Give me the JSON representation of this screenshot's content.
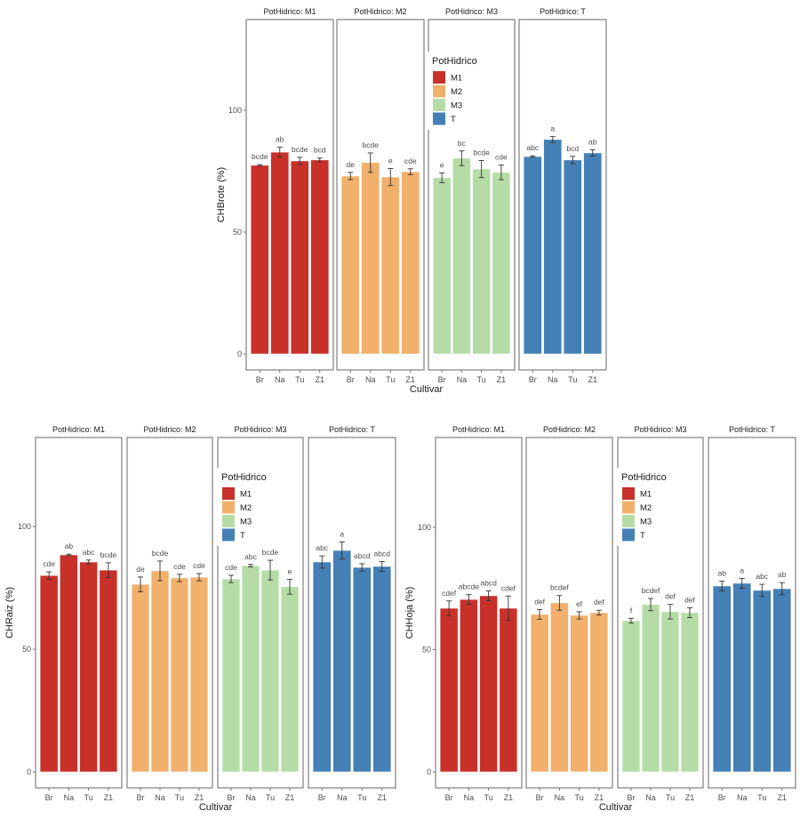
{
  "chart_data": [
    {
      "type": "bar",
      "id": "brote",
      "ylabel": "CHBrote (%)",
      "xlabel": "Cultivar",
      "ylim": [
        0,
        100
      ],
      "yticks": [
        0,
        50,
        100
      ],
      "categories": [
        "Br",
        "Na",
        "Tu",
        "Z1"
      ],
      "facet_prefix": "PotHidrico: ",
      "grid": false,
      "legend_position": "inside-third-panel",
      "series": [
        {
          "name": "M1",
          "values": [
            77.4,
            82.8,
            79.2,
            79.6
          ],
          "errors": [
            0.3,
            2,
            1.5,
            0.8
          ],
          "letters": [
            "bcde",
            "ab",
            "bcde",
            "bcd"
          ]
        },
        {
          "name": "M2",
          "values": [
            73.0,
            78.5,
            72.6,
            74.8
          ],
          "errors": [
            1.5,
            4,
            3.5,
            1.2
          ],
          "letters": [
            "de",
            "bcde",
            "e",
            "cde"
          ]
        },
        {
          "name": "M3",
          "values": [
            72.3,
            80.3,
            75.9,
            74.5
          ],
          "errors": [
            2,
            3,
            3.5,
            3
          ],
          "letters": [
            "e",
            "bc",
            "bcde",
            "cde"
          ]
        },
        {
          "name": "T",
          "values": [
            81.0,
            88.0,
            79.6,
            82.5
          ],
          "errors": [
            0.3,
            1.2,
            1.5,
            1.3
          ],
          "letters": [
            "abc",
            "a",
            "bcd",
            "ab"
          ]
        }
      ]
    },
    {
      "type": "bar",
      "id": "raiz",
      "ylabel": "CHRaiz (%)",
      "xlabel": "Cultivar",
      "ylim": [
        0,
        100
      ],
      "yticks": [
        0,
        50,
        100
      ],
      "categories": [
        "Br",
        "Na",
        "Tu",
        "Z1"
      ],
      "facet_prefix": "PotHidrico: ",
      "grid": false,
      "legend_position": "inside-third-panel",
      "series": [
        {
          "name": "M1",
          "values": [
            80.0,
            88.4,
            85.5,
            82.2
          ],
          "errors": [
            1.5,
            0.3,
            0.8,
            3
          ],
          "letters": [
            "cde",
            "ab",
            "abc",
            "bcde"
          ]
        },
        {
          "name": "M2",
          "values": [
            76.4,
            81.9,
            79.0,
            79.3
          ],
          "errors": [
            3,
            4,
            1.5,
            1.5
          ],
          "letters": [
            "de",
            "bcde",
            "cde",
            "cde"
          ]
        },
        {
          "name": "M3",
          "values": [
            78.6,
            84.0,
            82.2,
            75.4
          ],
          "errors": [
            1.5,
            0.5,
            4,
            3
          ],
          "letters": [
            "cde",
            "abc",
            "bcde",
            "e"
          ]
        },
        {
          "name": "T",
          "values": [
            85.5,
            90.2,
            83.3,
            83.7
          ],
          "errors": [
            2.5,
            3.5,
            1.5,
            2
          ],
          "letters": [
            "abc",
            "a",
            "abcd",
            "abcd"
          ]
        }
      ]
    },
    {
      "type": "bar",
      "id": "hoja",
      "ylabel": "CHHoja (%)",
      "xlabel": "Cultivar",
      "ylim": [
        0,
        100
      ],
      "yticks": [
        0,
        50,
        100
      ],
      "categories": [
        "Br",
        "Na",
        "Tu",
        "Z1"
      ],
      "facet_prefix": "PotHidrico: ",
      "grid": false,
      "legend_position": "inside-third-panel",
      "series": [
        {
          "name": "M1",
          "values": [
            66.9,
            70.5,
            72.0,
            66.9
          ],
          "errors": [
            3,
            2,
            2,
            5
          ],
          "letters": [
            "cdef",
            "abcde",
            "abcd",
            "cdef"
          ]
        },
        {
          "name": "M2",
          "values": [
            64.4,
            69.1,
            64.0,
            65.1
          ],
          "errors": [
            2,
            3,
            1.5,
            1
          ],
          "letters": [
            "def",
            "bcdef",
            "ef",
            "def"
          ]
        },
        {
          "name": "M3",
          "values": [
            61.8,
            68.4,
            65.5,
            65.1
          ],
          "errors": [
            1,
            2.5,
            3,
            2
          ],
          "letters": [
            "f",
            "bcdef",
            "def",
            "def"
          ]
        },
        {
          "name": "T",
          "values": [
            76.0,
            77.1,
            74.2,
            74.9
          ],
          "errors": [
            2,
            2,
            2.5,
            2.5
          ],
          "letters": [
            "ab",
            "a",
            "abc",
            "ab"
          ]
        }
      ]
    }
  ],
  "legend": {
    "title": "PotHidrico",
    "items": [
      {
        "label": "M1",
        "color": "#c8312a"
      },
      {
        "label": "M2",
        "color": "#f1b06b"
      },
      {
        "label": "M3",
        "color": "#b5dca6"
      },
      {
        "label": "T",
        "color": "#4480b5"
      }
    ]
  }
}
